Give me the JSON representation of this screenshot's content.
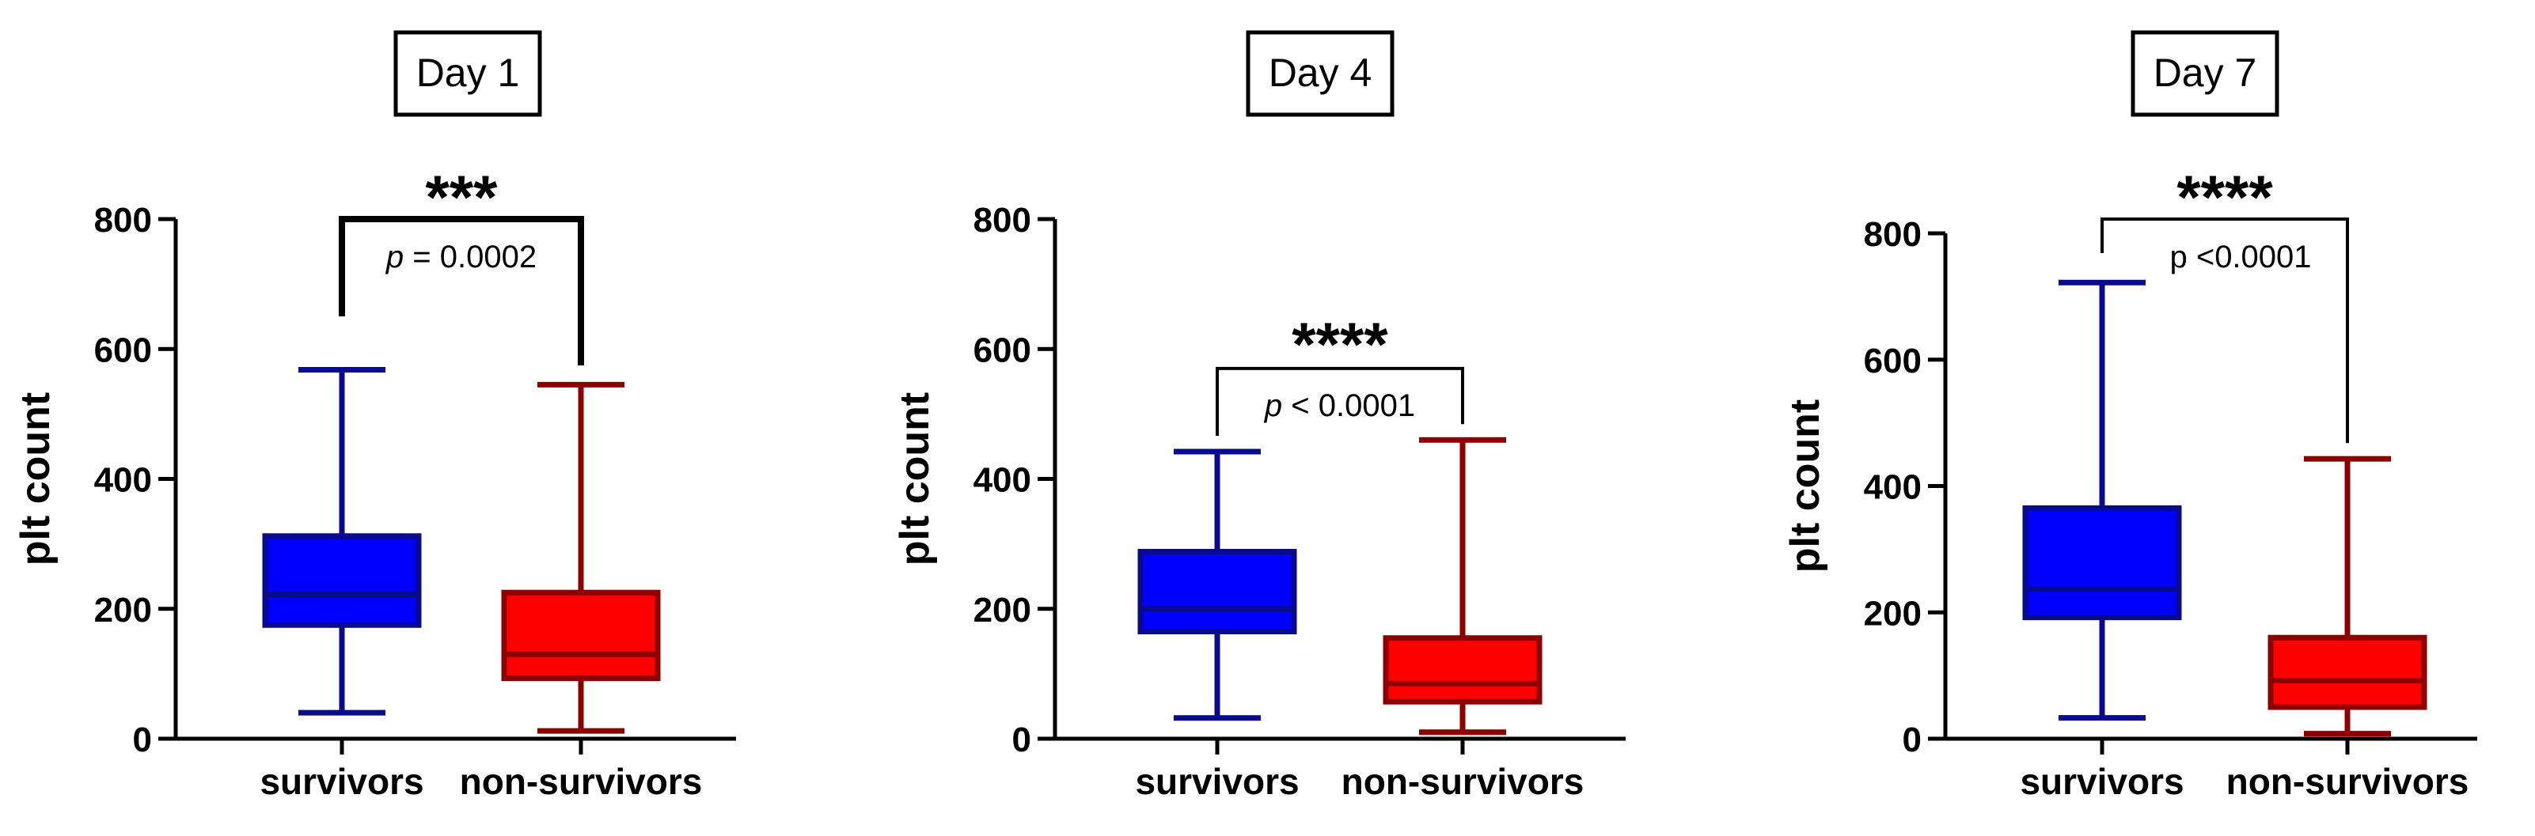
{
  "chart_data": [
    {
      "type": "box",
      "title": "Day 1",
      "ylabel": "plt count",
      "xlabel": "",
      "ylim": [
        0,
        800
      ],
      "yticks": [
        0,
        200,
        400,
        600,
        800
      ],
      "categories": [
        "survivors",
        "non-survivors"
      ],
      "series": [
        {
          "name": "survivors",
          "color": "#0000ff",
          "edge": "#0a0a8c",
          "min": 40,
          "q1": 175,
          "median": 222,
          "q3": 312,
          "max": 568
        },
        {
          "name": "non-survivors",
          "color": "#ff0000",
          "edge": "#8c0000",
          "min": 12,
          "q1": 93,
          "median": 130,
          "q3": 225,
          "max": 545
        }
      ],
      "significance": {
        "stars": "***",
        "p_prefix": "p",
        "p_value": "= 0.0002",
        "style": "thick",
        "placement": "above-max"
      }
    },
    {
      "type": "box",
      "title": "Day 4",
      "ylabel": "plt count",
      "xlabel": "",
      "ylim": [
        0,
        800
      ],
      "yticks": [
        0,
        200,
        400,
        600,
        800
      ],
      "categories": [
        "survivors",
        "non-survivors"
      ],
      "series": [
        {
          "name": "survivors",
          "color": "#0000ff",
          "edge": "#0a0a8c",
          "min": 32,
          "q1": 165,
          "median": 200,
          "q3": 288,
          "max": 442
        },
        {
          "name": "non-survivors",
          "color": "#ff0000",
          "edge": "#8c0000",
          "min": 10,
          "q1": 57,
          "median": 85,
          "q3": 155,
          "max": 460
        }
      ],
      "significance": {
        "stars": "****",
        "p_prefix": "p",
        "p_value": "< 0.0001",
        "style": "thin",
        "placement": "above-max"
      }
    },
    {
      "type": "box",
      "title": "Day 7",
      "ylabel": "plt count",
      "xlabel": "",
      "ylim": [
        0,
        800
      ],
      "yticks": [
        0,
        200,
        400,
        600,
        800
      ],
      "categories": [
        "survivors",
        "non-survivors"
      ],
      "series": [
        {
          "name": "survivors",
          "color": "#0000ff",
          "edge": "#0a0a8c",
          "min": 33,
          "q1": 192,
          "median": 237,
          "q3": 365,
          "max": 722
        },
        {
          "name": "non-survivors",
          "color": "#ff0000",
          "edge": "#8c0000",
          "min": 8,
          "q1": 50,
          "median": 92,
          "q3": 160,
          "max": 443
        }
      ],
      "significance": {
        "stars": "****",
        "p_prefix": "",
        "p_value": "p <0.0001",
        "style": "thin",
        "placement": "above-max"
      }
    }
  ]
}
